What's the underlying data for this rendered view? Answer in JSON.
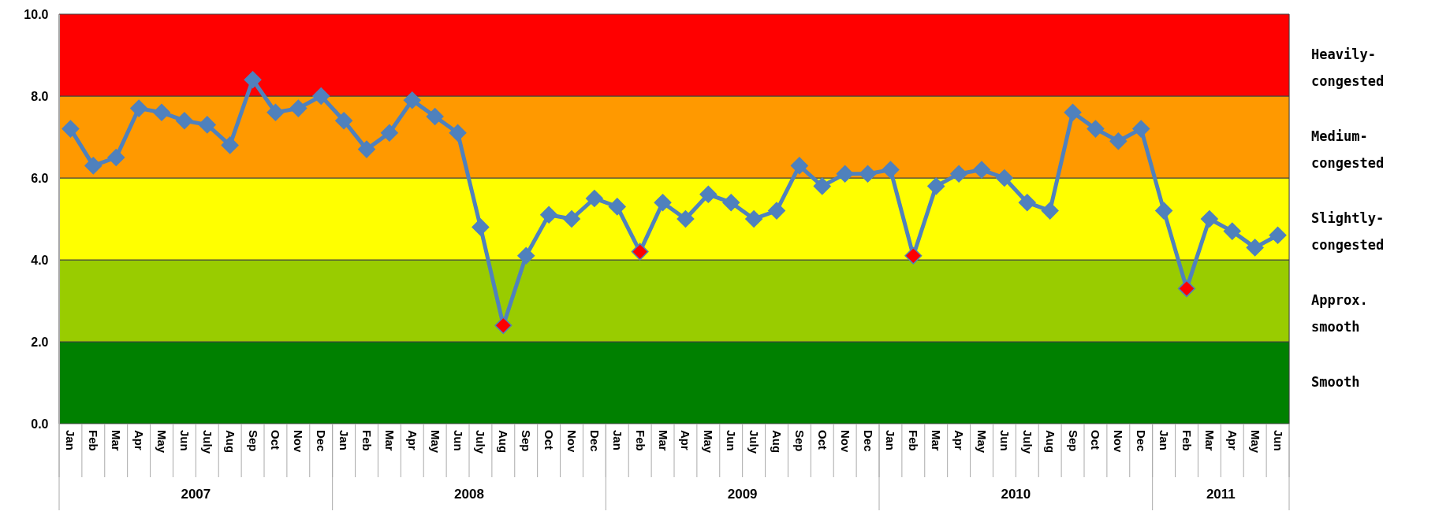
{
  "chart_data": {
    "type": "line",
    "categories": [
      "Jan",
      "Feb",
      "Mar",
      "Apr",
      "May",
      "Jun",
      "July",
      "Aug",
      "Sep",
      "Oct",
      "Nov",
      "Dec",
      "Jan",
      "Feb",
      "Mar",
      "Apr",
      "May",
      "Jun",
      "July",
      "Aug",
      "Sep",
      "Oct",
      "Nov",
      "Dec",
      "Jan",
      "Feb",
      "Mar",
      "Apr",
      "May",
      "Jun",
      "July",
      "Aug",
      "Sep",
      "Oct",
      "Nov",
      "Dec",
      "Jan",
      "Feb",
      "Mar",
      "Apr",
      "May",
      "Jun",
      "July",
      "Aug",
      "Sep",
      "Oct",
      "Nov",
      "Dec",
      "Jan",
      "Feb",
      "Mar",
      "Apr",
      "May",
      "Jun"
    ],
    "series": [
      {
        "color": "#4f81bd",
        "values": [
          7.2,
          6.3,
          6.5,
          7.7,
          7.6,
          7.4,
          7.3,
          6.8,
          8.4,
          7.6,
          7.7,
          8.0,
          7.4,
          6.7,
          7.1,
          7.9,
          7.5,
          7.1,
          4.8,
          2.4,
          4.1,
          5.1,
          5.0,
          5.5,
          5.3,
          4.2,
          5.4,
          5.0,
          5.6,
          5.4,
          5.0,
          5.2,
          6.3,
          5.8,
          6.1,
          6.1,
          6.2,
          4.1,
          5.8,
          6.1,
          6.2,
          6.0,
          5.4,
          5.2,
          7.6,
          7.2,
          6.9,
          7.2,
          5.2,
          3.3,
          5.0,
          4.7,
          4.3,
          4.6
        ],
        "colors": [
          "#4f81bd",
          "#4f81bd",
          "#4f81bd",
          "#4f81bd",
          "#4f81bd",
          "#4f81bd",
          "#4f81bd",
          "#4f81bd",
          "#4f81bd",
          "#4f81bd",
          "#4f81bd",
          "#4f81bd",
          "#4f81bd",
          "#4f81bd",
          "#4f81bd",
          "#4f81bd",
          "#4f81bd",
          "#4f81bd",
          "#4f81bd",
          "#ff0000",
          "#4f81bd",
          "#4f81bd",
          "#4f81bd",
          "#4f81bd",
          "#4f81bd",
          "#ff0000",
          "#4f81bd",
          "#4f81bd",
          "#4f81bd",
          "#4f81bd",
          "#4f81bd",
          "#4f81bd",
          "#4f81bd",
          "#4f81bd",
          "#4f81bd",
          "#4f81bd",
          "#4f81bd",
          "#ff0000",
          "#4f81bd",
          "#4f81bd",
          "#4f81bd",
          "#4f81bd",
          "#4f81bd",
          "#4f81bd",
          "#4f81bd",
          "#4f81bd",
          "#4f81bd",
          "#4f81bd",
          "#4f81bd",
          "#ff0000",
          "#4f81bd",
          "#4f81bd",
          "#4f81bd",
          "#4f81bd"
        ]
      }
    ],
    "ylim": [
      0,
      10
    ],
    "yticks": [
      {
        "value": 0,
        "label": "0.0"
      },
      {
        "value": 2,
        "label": "2.0"
      },
      {
        "value": 4,
        "label": "4.0"
      },
      {
        "value": 6,
        "label": "6.0"
      },
      {
        "value": 8,
        "label": "8.0"
      },
      {
        "value": 10,
        "label": "10.0"
      }
    ],
    "bands": [
      {
        "axis": "y",
        "from": 0,
        "to": 2,
        "label": "Smooth",
        "color": "#008000"
      },
      {
        "axis": "y",
        "from": 2,
        "to": 4,
        "label": "Approx.\nsmooth",
        "color": "#99cc00"
      },
      {
        "axis": "y",
        "from": 4,
        "to": 6,
        "label": "Slightly-\ncongested",
        "color": "#ffff00"
      },
      {
        "axis": "y",
        "from": 6,
        "to": 8,
        "label": "Medium-\ncongested",
        "color": "#ff9900"
      },
      {
        "axis": "y",
        "from": 8,
        "to": 10,
        "label": "Heavily-\ncongested",
        "color": "#ff0000"
      }
    ],
    "annotations": [
      "2007",
      "2008",
      "2009",
      "2010",
      "2011"
    ],
    "marker": "diamond",
    "line_style": "solid",
    "grid": false
  }
}
